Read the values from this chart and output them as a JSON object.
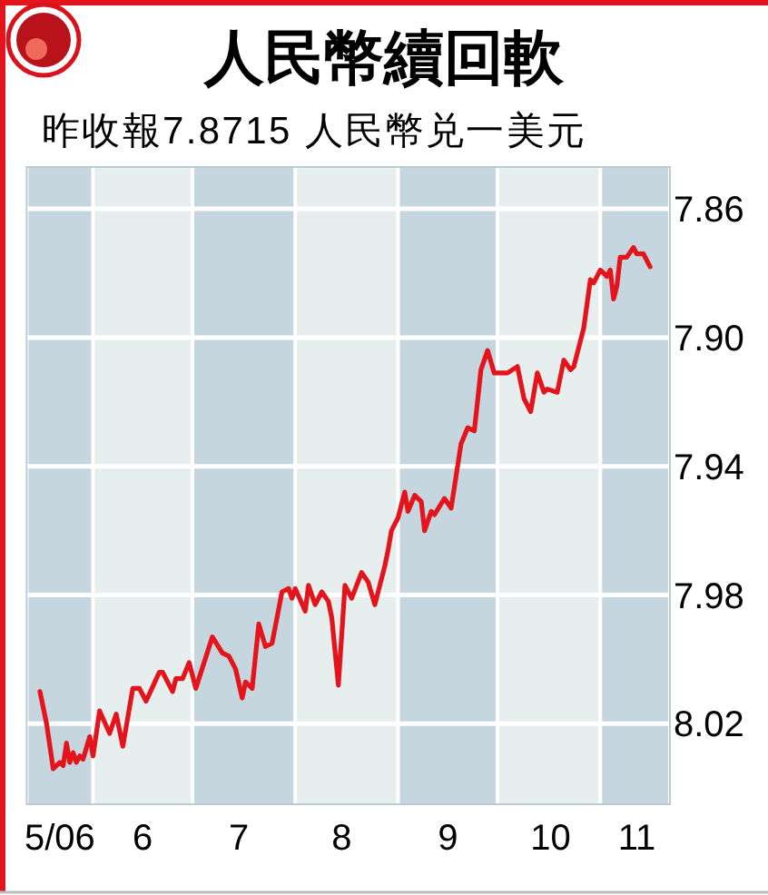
{
  "chart_data": {
    "type": "line",
    "title": "人民幣續回軟",
    "subtitle": "昨收報7.8715 人民幣兑一美元",
    "x": [
      "2006-05-16",
      "2006-05-18",
      "2006-05-20",
      "2006-05-22",
      "2006-05-23",
      "2006-05-24",
      "2006-05-25",
      "2006-05-26",
      "2006-05-27",
      "2006-05-28",
      "2006-05-29",
      "2006-05-31",
      "2006-06-01",
      "2006-06-03",
      "2006-06-06",
      "2006-06-08",
      "2006-06-10",
      "2006-06-13",
      "2006-06-15",
      "2006-06-17",
      "2006-06-21",
      "2006-06-22",
      "2006-06-25",
      "2006-06-26",
      "2006-06-28",
      "2006-06-30",
      "2006-07-02",
      "2006-07-07",
      "2006-07-10",
      "2006-07-12",
      "2006-07-14",
      "2006-07-16",
      "2006-07-17",
      "2006-07-19",
      "2006-07-21",
      "2006-07-23",
      "2006-07-25",
      "2006-07-28",
      "2006-07-30",
      "2006-07-31",
      "2006-08-01",
      "2006-08-04",
      "2006-08-05",
      "2006-08-07",
      "2006-08-09",
      "2006-08-11",
      "2006-08-12",
      "2006-08-14",
      "2006-08-16",
      "2006-08-18",
      "2006-08-21",
      "2006-08-23",
      "2006-08-25",
      "2006-08-28",
      "2006-08-29",
      "2006-08-30",
      "2006-09-01",
      "2006-09-03",
      "2006-09-04",
      "2006-09-06",
      "2006-09-08",
      "2006-09-09",
      "2006-09-11",
      "2006-09-12",
      "2006-09-15",
      "2006-09-17",
      "2006-09-20",
      "2006-09-22",
      "2006-09-24",
      "2006-09-26",
      "2006-09-28",
      "2006-09-30",
      "2006-10-04",
      "2006-10-07",
      "2006-10-09",
      "2006-10-11",
      "2006-10-13",
      "2006-10-15",
      "2006-10-16",
      "2006-10-19",
      "2006-10-21",
      "2006-10-23",
      "2006-10-24",
      "2006-10-27",
      "2006-10-29",
      "2006-10-30",
      "2006-11-01",
      "2006-11-03",
      "2006-11-04",
      "2006-11-05",
      "2006-11-06",
      "2006-11-07",
      "2006-11-09",
      "2006-11-11",
      "2006-11-12",
      "2006-11-14",
      "2006-11-16"
    ],
    "values": [
      8.01,
      8.02,
      8.034,
      8.032,
      8.033,
      8.026,
      8.032,
      8.029,
      8.032,
      8.03,
      8.031,
      8.024,
      8.03,
      8.016,
      8.023,
      8.017,
      8.027,
      8.009,
      8.009,
      8.013,
      8.004,
      8.004,
      8.01,
      8.006,
      8.006,
      8.001,
      8.009,
      7.993,
      7.998,
      7.999,
      8.003,
      8.012,
      8.007,
      8.009,
      7.989,
      7.996,
      7.995,
      7.979,
      7.978,
      7.981,
      7.978,
      7.985,
      7.977,
      7.983,
      7.979,
      7.982,
      7.987,
      8.008,
      7.977,
      7.981,
      7.973,
      7.976,
      7.983,
      7.971,
      7.966,
      7.96,
      7.956,
      7.948,
      7.954,
      7.949,
      7.951,
      7.96,
      7.954,
      7.955,
      7.95,
      7.953,
      7.933,
      7.928,
      7.929,
      7.91,
      7.904,
      7.911,
      7.911,
      7.909,
      7.919,
      7.923,
      7.911,
      7.917,
      7.916,
      7.917,
      7.907,
      7.91,
      7.909,
      7.897,
      7.882,
      7.883,
      7.879,
      7.881,
      7.879,
      7.888,
      7.884,
      7.875,
      7.875,
      7.872,
      7.874,
      7.874,
      7.878
    ],
    "color": "#e3141b",
    "xlim": [
      "2006-05-12",
      "2006-11-22"
    ],
    "xticks": [
      {
        "value": "2006-05-22",
        "label": "5/06"
      },
      {
        "value": "2006-06-16",
        "label": "6"
      },
      {
        "value": "2006-07-15",
        "label": "7"
      },
      {
        "value": "2006-08-15",
        "label": "8"
      },
      {
        "value": "2006-09-16",
        "label": "9"
      },
      {
        "value": "2006-10-17",
        "label": "10"
      },
      {
        "value": "2006-11-12",
        "label": "11"
      }
    ],
    "ylim": [
      8.045,
      7.847
    ],
    "yticks": [
      7.86,
      {
        "value": 7.9,
        "label": "7.90"
      },
      7.94,
      7.98,
      8.02
    ],
    "grid": "y",
    "bands": [
      {
        "axis": "x",
        "from": "2006-05-12",
        "to": "2006-06-01",
        "color": "#c6d6de"
      },
      {
        "axis": "x",
        "from": "2006-06-01",
        "to": "2006-07-01",
        "color": "#e6eeee"
      },
      {
        "axis": "x",
        "from": "2006-07-01",
        "to": "2006-08-01",
        "color": "#c6d6de"
      },
      {
        "axis": "x",
        "from": "2006-08-01",
        "to": "2006-09-01",
        "color": "#e6eeee"
      },
      {
        "axis": "x",
        "from": "2006-09-01",
        "to": "2006-10-01",
        "color": "#c6d6de"
      },
      {
        "axis": "x",
        "from": "2006-10-01",
        "to": "2006-11-01",
        "color": "#e6eeee"
      },
      {
        "axis": "x",
        "from": "2006-11-01",
        "to": "2006-11-22",
        "color": "#c6d6de"
      }
    ]
  }
}
